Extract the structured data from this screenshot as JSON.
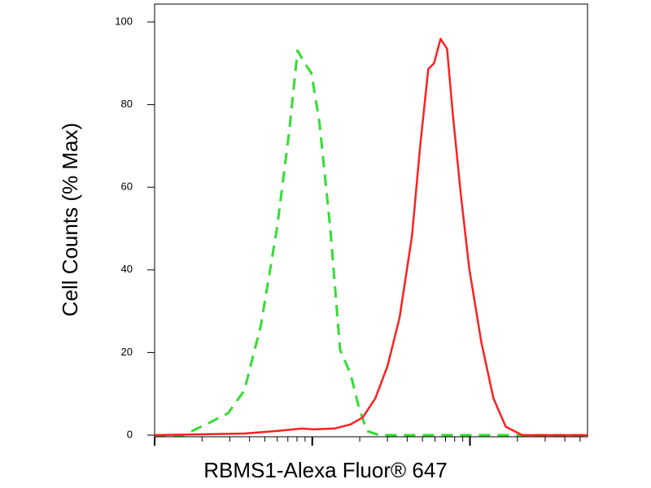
{
  "chart_data": {
    "type": "line",
    "ylabel": "Cell Counts (% Max)",
    "xlabel": "RBMS1-Alexa Fluor® 647",
    "xscale": "log",
    "xlim": [
      1,
      557
    ],
    "ylim": [
      0,
      100
    ],
    "xticks": [
      1,
      2,
      3,
      4,
      5,
      6,
      7,
      8,
      9,
      10,
      20,
      30,
      40,
      50,
      60,
      70,
      80,
      90,
      100,
      200,
      300,
      400,
      500
    ],
    "yticks": [
      0,
      20,
      40,
      60,
      80,
      100
    ],
    "series": [
      {
        "color": "#33dd33",
        "dash": true,
        "x": [
          1,
          1.52,
          1.82,
          2.31,
          2.92,
          3.71,
          4.72,
          5.98,
          7.16,
          8.07,
          8.77,
          9.88,
          11.1,
          13.0,
          15.0,
          17.5,
          19.7,
          22.2,
          26.6,
          557
        ],
        "values": [
          0,
          0,
          1.4,
          3.3,
          5.3,
          10.8,
          26.6,
          50.2,
          73.8,
          93.1,
          90.6,
          87.6,
          75.8,
          50.2,
          20.7,
          14.8,
          6.9,
          1.0,
          0,
          0
        ]
      },
      {
        "color": "#ff2020",
        "dash": false,
        "x": [
          1,
          3.71,
          5.98,
          8.57,
          10.2,
          13.8,
          17.5,
          20.9,
          25.1,
          30.0,
          35.8,
          42.9,
          48.3,
          54.4,
          59.2,
          65.1,
          71.6,
          77.8,
          87.7,
          98.9,
          118,
          141,
          169,
          215,
          557
        ],
        "values": [
          0,
          0.4,
          1.0,
          1.6,
          1.4,
          1.6,
          2.6,
          4.3,
          8.9,
          16.7,
          28.5,
          48.2,
          69.9,
          88.6,
          90.0,
          95.9,
          93.5,
          77.8,
          58.1,
          40.4,
          22.6,
          8.9,
          2.0,
          0,
          0
        ]
      }
    ]
  }
}
